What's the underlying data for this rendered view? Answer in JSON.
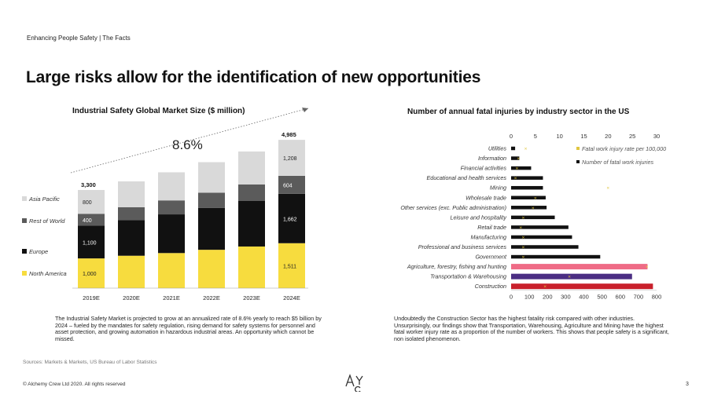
{
  "header": {
    "label": "Enhancing People Safety | The Facts"
  },
  "title": "Large risks allow for the identification of new opportunities",
  "left_chart": {
    "title": "Industrial Safety Global Market Size ($ million)",
    "growth_label": "8.6%",
    "paragraph": "The Industrial Safety Market is projected to grow at an annualized rate of 8.6% yearly to reach $5 billion by 2024 – fueled by the mandates for safety regulation, rising  demand for safety systems for personnel and asset protection, and growing automation in hazardous industrial areas. An opportunity which cannot be missed."
  },
  "right_chart": {
    "title": "Number of annual fatal injuries by industry sector in the US",
    "paragraph": "Undoubtedly the Construction Sector has the highest fatality risk compared with other industries. Unsurprisingly, our findings show that Transportation, Warehousing, Agriculture and Mining have the highest fatal worker injury rate as a proportion of the number of workers. This shows that people safety is a significant, non isolated phenomenon."
  },
  "sources": "Sources: Markets & Markets, US Bureau of Labor Statistics",
  "footer": {
    "copyright": "© Alchemy Crew Ltd 2020. All rights reserved",
    "page_number": "3",
    "logo_text": "AyC"
  },
  "colors": {
    "north_america": "#f7dc3e",
    "europe": "#111111",
    "rest_of_world": "#5b5b5b",
    "asia_pacific": "#d9d9d9",
    "pink": "#ef6b86",
    "purple": "#4b2e83",
    "red": "#c8202b",
    "rate_marker": "#e0c640"
  },
  "chart_data": [
    {
      "type": "bar",
      "stacked": true,
      "title": "Industrial Safety Global Market Size ($ million)",
      "categories": [
        "2019E",
        "2020E",
        "2021E",
        "2022E",
        "2023E",
        "2024E"
      ],
      "series": [
        {
          "name": "North America",
          "values": [
            1000,
            1090,
            1180,
            1290,
            1400,
            1511
          ]
        },
        {
          "name": "Europe",
          "values": [
            1100,
            1195,
            1300,
            1410,
            1530,
            1662
          ]
        },
        {
          "name": "Rest of World",
          "values": [
            400,
            435,
            470,
            510,
            555,
            604
          ]
        },
        {
          "name": "Asia Pacific",
          "values": [
            800,
            870,
            945,
            1025,
            1110,
            1208
          ]
        }
      ],
      "labeled_values": {
        "2019E": {
          "total": "3,300",
          "North America": "1,000",
          "Europe": "1,100",
          "Rest of World": "400",
          "Asia Pacific": "800"
        },
        "2024E": {
          "total": "4,985",
          "North America": "1,511",
          "Europe": "1,662",
          "Rest of World": "604",
          "Asia Pacific": "1,208"
        }
      },
      "legend": [
        "Asia Pacific",
        "Rest of World",
        "Europe",
        "North America"
      ],
      "annotation": "8.6%",
      "ylim": [
        0,
        5200
      ]
    },
    {
      "type": "bar",
      "orientation": "horizontal",
      "title": "Number of annual fatal injuries by industry sector in the US",
      "categories": [
        "Utilities",
        "Information",
        "Financial activities",
        "Educational and health services",
        "Mining",
        "Wholesale trade",
        "Other services (exc. Public administration)",
        "Leisure and hospitality",
        "Retail trade",
        "Manufacturing",
        "Professional and business services",
        "Government",
        "Agriculture, forestry, fishing and hunting",
        "Transportation & Warehousing",
        "Construction"
      ],
      "series": [
        {
          "name": "Number of fatal work injuries",
          "axis": "bottom",
          "xlim": [
            0,
            800
          ],
          "ticks": [
            0,
            100,
            200,
            300,
            400,
            500,
            600,
            700,
            800
          ],
          "values": [
            22,
            45,
            110,
            175,
            175,
            190,
            195,
            240,
            315,
            335,
            370,
            490,
            750,
            665,
            780
          ]
        },
        {
          "name": "Fatal work injury rate per 100,000",
          "axis": "top",
          "xlim": [
            0,
            30
          ],
          "ticks": [
            0,
            5,
            10,
            15,
            20,
            25,
            30
          ],
          "values": [
            3.0,
            1.5,
            1.2,
            0.9,
            20.0,
            5.0,
            4.5,
            2.5,
            2.0,
            2.5,
            2.5,
            2.5,
            28.0,
            12.0,
            7.0
          ]
        }
      ],
      "legend": [
        "Fatal work injury rate per 100,000",
        "Number of fatal work injuries"
      ]
    }
  ]
}
